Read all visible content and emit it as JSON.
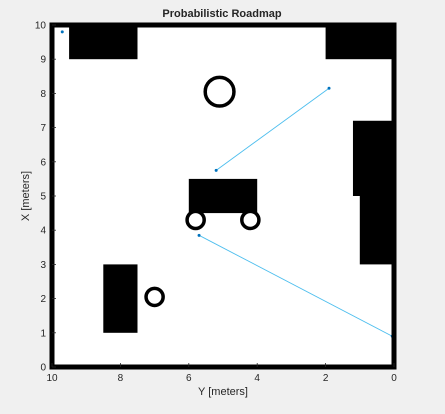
{
  "window": {
    "background": "#f0f0f0"
  },
  "chart_data": {
    "type": "scatter",
    "title": "Probabilistic Roadmap",
    "xlabel": "Y [meters]",
    "ylabel": "X [meters]",
    "x_axis_reversed": true,
    "xlim": [
      0,
      10
    ],
    "ylim": [
      0,
      10
    ],
    "x_ticks": [
      "10",
      "8",
      "6",
      "4",
      "2",
      "0"
    ],
    "x_tick_values": [
      10,
      8,
      6,
      4,
      2,
      0
    ],
    "y_ticks": [
      "0",
      "1",
      "2",
      "3",
      "4",
      "5",
      "6",
      "7",
      "8",
      "9",
      "10"
    ],
    "y_tick_values": [
      0,
      1,
      2,
      3,
      4,
      5,
      6,
      7,
      8,
      9,
      10
    ],
    "grid": false,
    "legend": "none",
    "occupancy_rectangles": [
      {
        "name": "obstacle-top-left",
        "x": [
          7.5,
          9.5
        ],
        "y": [
          9.0,
          10.0
        ]
      },
      {
        "name": "obstacle-top-right",
        "x": [
          0.0,
          2.0
        ],
        "y": [
          9.0,
          10.0
        ]
      },
      {
        "name": "obstacle-right-upper",
        "x": [
          0.0,
          1.2
        ],
        "y": [
          5.0,
          7.2
        ]
      },
      {
        "name": "obstacle-right-lower",
        "x": [
          0.0,
          1.0
        ],
        "y": [
          3.0,
          5.0
        ]
      },
      {
        "name": "obstacle-center-block",
        "x": [
          4.0,
          6.0
        ],
        "y": [
          4.5,
          5.5
        ]
      },
      {
        "name": "obstacle-bottom-left",
        "x": [
          7.5,
          8.5
        ],
        "y": [
          1.0,
          3.0
        ]
      }
    ],
    "ring_obstacles": [
      {
        "name": "ring-obstacle-top",
        "x": 5.1,
        "y": 8.05,
        "r": 0.42
      },
      {
        "name": "ring-obstacle-wheel-left",
        "x": 5.8,
        "y": 4.3,
        "r": 0.25
      },
      {
        "name": "ring-obstacle-wheel-right",
        "x": 4.2,
        "y": 4.3,
        "r": 0.25
      },
      {
        "name": "ring-obstacle-bottom-left",
        "x": 7.0,
        "y": 2.05,
        "r": 0.25
      }
    ],
    "series": [
      {
        "points": [
          {
            "x": 9.7,
            "y": 9.8
          },
          {
            "x": 1.9,
            "y": 8.15
          },
          {
            "x": 5.2,
            "y": 5.75
          },
          {
            "x": 5.7,
            "y": 3.85
          },
          {
            "x": 0.05,
            "y": 0.9
          }
        ],
        "edges": [
          [
            1,
            2
          ],
          [
            3,
            4
          ]
        ],
        "color": "#0072bd",
        "edge_color": "#4dbeee"
      }
    ]
  }
}
